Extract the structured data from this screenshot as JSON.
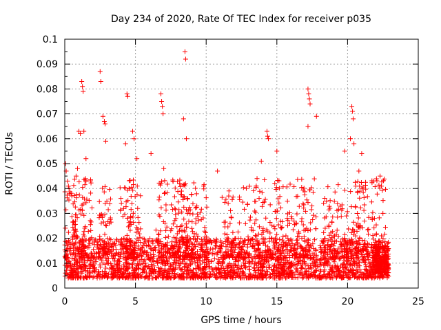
{
  "chart_data": {
    "type": "scatter",
    "title": "Day 234 of 2020, Rate Of TEC Index for receiver p035",
    "xlabel": "GPS time / hours",
    "ylabel": "ROTI / TECUs",
    "xlim": [
      0,
      25
    ],
    "ylim": [
      0,
      0.1
    ],
    "xticks": [
      "0",
      "5",
      "10",
      "15",
      "20",
      "25"
    ],
    "yticks": [
      "0",
      "0.01",
      "0.02",
      "0.03",
      "0.04",
      "0.05",
      "0.06",
      "0.07",
      "0.08",
      "0.09",
      "0.1"
    ],
    "grid": true,
    "marker": "+",
    "marker_color": "#ff0000",
    "series": [
      {
        "x_range": [
          0,
          22.9
        ],
        "points": [
          [
            0.05,
            0.05
          ],
          [
            0.1,
            0.047
          ],
          [
            0.2,
            0.043
          ],
          [
            0.3,
            0.04
          ],
          [
            0.5,
            0.037
          ],
          [
            0.8,
            0.045
          ],
          [
            0.9,
            0.048
          ],
          [
            1.0,
            0.063
          ],
          [
            1.1,
            0.062
          ],
          [
            1.2,
            0.083
          ],
          [
            1.25,
            0.081
          ],
          [
            1.3,
            0.079
          ],
          [
            1.35,
            0.063
          ],
          [
            1.5,
            0.052
          ],
          [
            2.5,
            0.087
          ],
          [
            2.55,
            0.083
          ],
          [
            2.7,
            0.069
          ],
          [
            2.8,
            0.067
          ],
          [
            2.85,
            0.066
          ],
          [
            2.9,
            0.059
          ],
          [
            4.3,
            0.058
          ],
          [
            4.4,
            0.078
          ],
          [
            4.45,
            0.077
          ],
          [
            4.8,
            0.063
          ],
          [
            4.9,
            0.06
          ],
          [
            5.1,
            0.052
          ],
          [
            6.1,
            0.054
          ],
          [
            6.8,
            0.078
          ],
          [
            6.85,
            0.075
          ],
          [
            6.9,
            0.073
          ],
          [
            6.95,
            0.07
          ],
          [
            7.0,
            0.048
          ],
          [
            8.4,
            0.068
          ],
          [
            8.5,
            0.095
          ],
          [
            8.55,
            0.092
          ],
          [
            8.6,
            0.06
          ],
          [
            10.8,
            0.047
          ],
          [
            13.9,
            0.051
          ],
          [
            14.3,
            0.063
          ],
          [
            14.35,
            0.061
          ],
          [
            14.4,
            0.06
          ],
          [
            15.0,
            0.055
          ],
          [
            17.2,
            0.08
          ],
          [
            17.25,
            0.078
          ],
          [
            17.3,
            0.076
          ],
          [
            17.35,
            0.074
          ],
          [
            17.2,
            0.065
          ],
          [
            17.8,
            0.069
          ],
          [
            19.8,
            0.055
          ],
          [
            20.2,
            0.06
          ],
          [
            20.3,
            0.073
          ],
          [
            20.35,
            0.071
          ],
          [
            20.4,
            0.068
          ],
          [
            20.45,
            0.058
          ],
          [
            20.8,
            0.047
          ],
          [
            21.0,
            0.054
          ],
          [
            22.3,
            0.045
          ],
          [
            22.5,
            0.03
          ]
        ]
      }
    ]
  }
}
